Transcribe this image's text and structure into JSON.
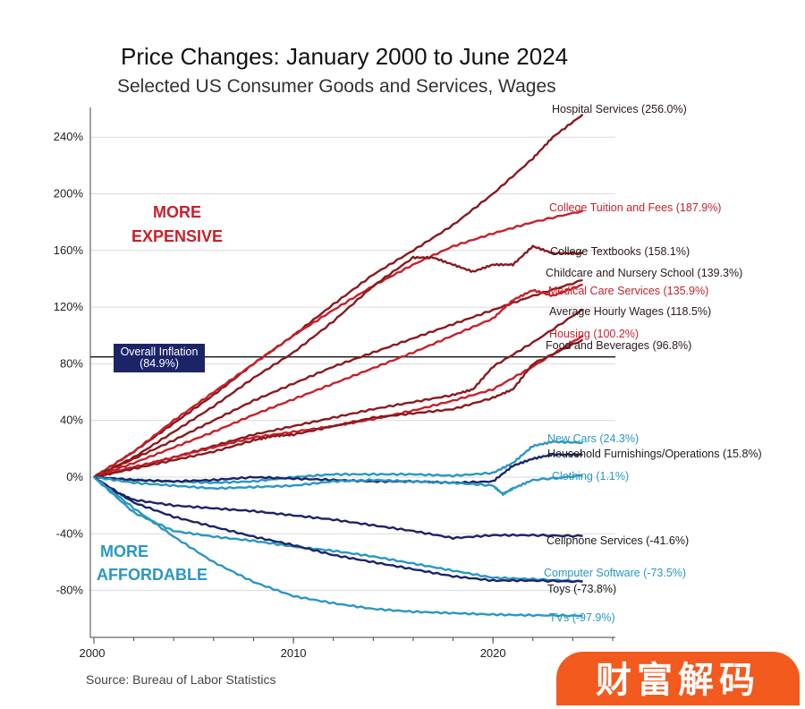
{
  "header": {
    "title": "Price Changes:  January 2000 to June 2024",
    "subtitle": "Selected US Consumer Goods and Services, Wages",
    "source": "Source: Bureau of Labor Statistics"
  },
  "brand": {
    "label": "财富解码"
  },
  "colors": {
    "red": "#c8202a",
    "darkred": "#8a1a1e",
    "teal": "#2a97c2",
    "navy": "#1c2468",
    "grid": "#d9d9d9"
  },
  "chart_data": {
    "type": "line",
    "title": "Price Changes:  January 2000 to June 2024",
    "subtitle": "Selected US Consumer Goods and Services, Wages",
    "xlabel": "",
    "ylabel": "",
    "xlim": [
      2000,
      2026
    ],
    "ylim": [
      -110,
      260
    ],
    "x_ticks": [
      {
        "value": 2000,
        "label": "2000"
      },
      {
        "value": 2010,
        "label": "2010"
      },
      {
        "value": 2020,
        "label": "2020"
      }
    ],
    "y_ticks": [
      {
        "value": 240,
        "label": "240%"
      },
      {
        "value": 200,
        "label": "200%"
      },
      {
        "value": 160,
        "label": "160%"
      },
      {
        "value": 120,
        "label": "120%"
      },
      {
        "value": 80,
        "label": "80%"
      },
      {
        "value": 40,
        "label": "40%"
      },
      {
        "value": 0,
        "label": "0%"
      },
      {
        "value": -40,
        "label": "-40%"
      },
      {
        "value": -80,
        "label": "-80%"
      }
    ],
    "grid": true,
    "annotations": {
      "more_expensive": [
        "MORE",
        "EXPENSIVE"
      ],
      "more_affordable": [
        "MORE",
        "AFFORDABLE"
      ],
      "overall_inflation": {
        "label_line1": "Overall Inflation",
        "label_line2": "(84.9%)",
        "value": 84.9
      }
    },
    "series": [
      {
        "name": "Hospital Services",
        "label": "Hospital Services (256.0%)",
        "color": "darkred",
        "x": [
          2000,
          2002,
          2004,
          2006,
          2008,
          2010,
          2012,
          2014,
          2016,
          2018,
          2020,
          2022,
          2023,
          2024.5
        ],
        "values": [
          0,
          18,
          38,
          58,
          80,
          100,
          122,
          143,
          160,
          178,
          200,
          225,
          240,
          256
        ]
      },
      {
        "name": "College Tuition and Fees",
        "label": "College Tuition and Fees (187.9%)",
        "color": "red",
        "x": [
          2000,
          2002,
          2004,
          2006,
          2008,
          2010,
          2012,
          2014,
          2016,
          2018,
          2020,
          2022,
          2024.5
        ],
        "values": [
          0,
          18,
          40,
          60,
          80,
          100,
          118,
          135,
          150,
          163,
          172,
          180,
          188
        ]
      },
      {
        "name": "College Textbooks",
        "label": "College Textbooks (158.1%)",
        "color": "darkred",
        "x": [
          2000,
          2002,
          2004,
          2006,
          2008,
          2010,
          2012,
          2014,
          2016,
          2017,
          2018,
          2019,
          2020,
          2021,
          2022,
          2023,
          2024.5
        ],
        "values": [
          0,
          14,
          32,
          50,
          70,
          88,
          110,
          135,
          155,
          155,
          150,
          145,
          150,
          150,
          163,
          158,
          158
        ]
      },
      {
        "name": "Childcare and Nursery School",
        "label": "Childcare and Nursery School (139.3%)",
        "color": "darkred",
        "x": [
          2000,
          2002,
          2004,
          2006,
          2008,
          2010,
          2012,
          2014,
          2016,
          2018,
          2020,
          2022,
          2024.5
        ],
        "values": [
          0,
          13,
          26,
          40,
          54,
          66,
          78,
          88,
          98,
          108,
          118,
          128,
          139
        ]
      },
      {
        "name": "Medical Care Services",
        "label": "Medical Care Services (135.9%)",
        "color": "red",
        "x": [
          2000,
          2002,
          2004,
          2006,
          2008,
          2010,
          2012,
          2014,
          2016,
          2018,
          2020,
          2021,
          2022,
          2023,
          2024.5
        ],
        "values": [
          0,
          10,
          21,
          32,
          44,
          55,
          66,
          77,
          88,
          100,
          112,
          125,
          132,
          128,
          136
        ]
      },
      {
        "name": "Average Hourly Wages",
        "label": "Average Hourly Wages (118.5%)",
        "color": "darkred",
        "x": [
          2000,
          2002,
          2004,
          2006,
          2008,
          2010,
          2012,
          2014,
          2016,
          2018,
          2019,
          2020,
          2022,
          2024.5
        ],
        "values": [
          0,
          7,
          14,
          22,
          30,
          36,
          42,
          48,
          53,
          58,
          62,
          78,
          95,
          118.5
        ]
      },
      {
        "name": "Housing",
        "label": "Housing (100.2%)",
        "color": "red",
        "x": [
          2000,
          2002,
          2004,
          2006,
          2008,
          2010,
          2012,
          2014,
          2016,
          2018,
          2020,
          2022,
          2024.5
        ],
        "values": [
          0,
          7,
          14,
          21,
          28,
          32,
          36,
          41,
          47,
          54,
          62,
          78,
          100
        ]
      },
      {
        "name": "Food and Beverages",
        "label": "Food and Beverages (96.8%)",
        "color": "darkred",
        "x": [
          2000,
          2002,
          2004,
          2006,
          2008,
          2009,
          2010,
          2012,
          2014,
          2016,
          2018,
          2020,
          2021,
          2022,
          2024.5
        ],
        "values": [
          0,
          6,
          12,
          18,
          26,
          29,
          30,
          36,
          42,
          45,
          48,
          56,
          62,
          80,
          97
        ]
      },
      {
        "name": "New Cars",
        "label": "New Cars (24.3%)",
        "color": "teal",
        "x": [
          2000,
          2002,
          2004,
          2006,
          2008,
          2010,
          2012,
          2014,
          2016,
          2018,
          2020,
          2021,
          2022,
          2023,
          2024.5
        ],
        "values": [
          0,
          -2,
          -3,
          -4,
          -3,
          0,
          2,
          2,
          2,
          1,
          3,
          10,
          22,
          25,
          24.3
        ]
      },
      {
        "name": "Household Furnishings/Operations",
        "label": "Household Furnishings/Operations (15.8%)",
        "color": "navy",
        "x": [
          2000,
          2002,
          2004,
          2006,
          2008,
          2010,
          2012,
          2014,
          2016,
          2018,
          2020,
          2021,
          2022,
          2023,
          2024.5
        ],
        "values": [
          0,
          -2,
          -3,
          -2,
          0,
          -1,
          -2,
          -3,
          -3,
          -4,
          -3,
          8,
          13,
          16,
          15.8
        ]
      },
      {
        "name": "Clothing",
        "label": "Clothing (1.1%)",
        "color": "teal",
        "x": [
          2000,
          2002,
          2004,
          2006,
          2008,
          2010,
          2012,
          2014,
          2016,
          2018,
          2020,
          2020.5,
          2021,
          2022,
          2024.5
        ],
        "values": [
          0,
          -4,
          -6,
          -8,
          -7,
          -6,
          -3,
          -2,
          -3,
          -4,
          -6,
          -12,
          -8,
          -2,
          1.1
        ]
      },
      {
        "name": "Cellphone Services",
        "label": "Cellphone Services (-41.6%)",
        "color": "navy",
        "x": [
          2000,
          2001,
          2002,
          2004,
          2006,
          2008,
          2010,
          2012,
          2014,
          2016,
          2018,
          2020,
          2022,
          2024.5
        ],
        "values": [
          0,
          -10,
          -16,
          -20,
          -22,
          -24,
          -27,
          -30,
          -34,
          -38,
          -43,
          -41,
          -41,
          -41.6
        ]
      },
      {
        "name": "Computer Software",
        "label": "Computer Software (-73.5%)",
        "color": "teal",
        "x": [
          2000,
          2002,
          2004,
          2006,
          2008,
          2010,
          2012,
          2014,
          2016,
          2018,
          2020,
          2022,
          2024.5
        ],
        "values": [
          0,
          -25,
          -38,
          -42,
          -45,
          -49,
          -52,
          -56,
          -61,
          -66,
          -71,
          -72,
          -73.5
        ]
      },
      {
        "name": "Toys",
        "label": "Toys (-73.8%)",
        "color": "navy",
        "x": [
          2000,
          2002,
          2004,
          2006,
          2008,
          2010,
          2012,
          2014,
          2016,
          2018,
          2020,
          2022,
          2024.5
        ],
        "values": [
          0,
          -18,
          -28,
          -35,
          -42,
          -48,
          -55,
          -60,
          -65,
          -70,
          -73,
          -73,
          -73.8
        ]
      },
      {
        "name": "TVs",
        "label": "TVs (-97.9%)",
        "color": "teal",
        "x": [
          2000,
          2002,
          2004,
          2006,
          2008,
          2010,
          2012,
          2014,
          2016,
          2018,
          2020,
          2022,
          2024.5
        ],
        "values": [
          0,
          -22,
          -42,
          -60,
          -74,
          -84,
          -89,
          -93,
          -95,
          -96,
          -97,
          -97.5,
          -97.9
        ]
      }
    ]
  }
}
